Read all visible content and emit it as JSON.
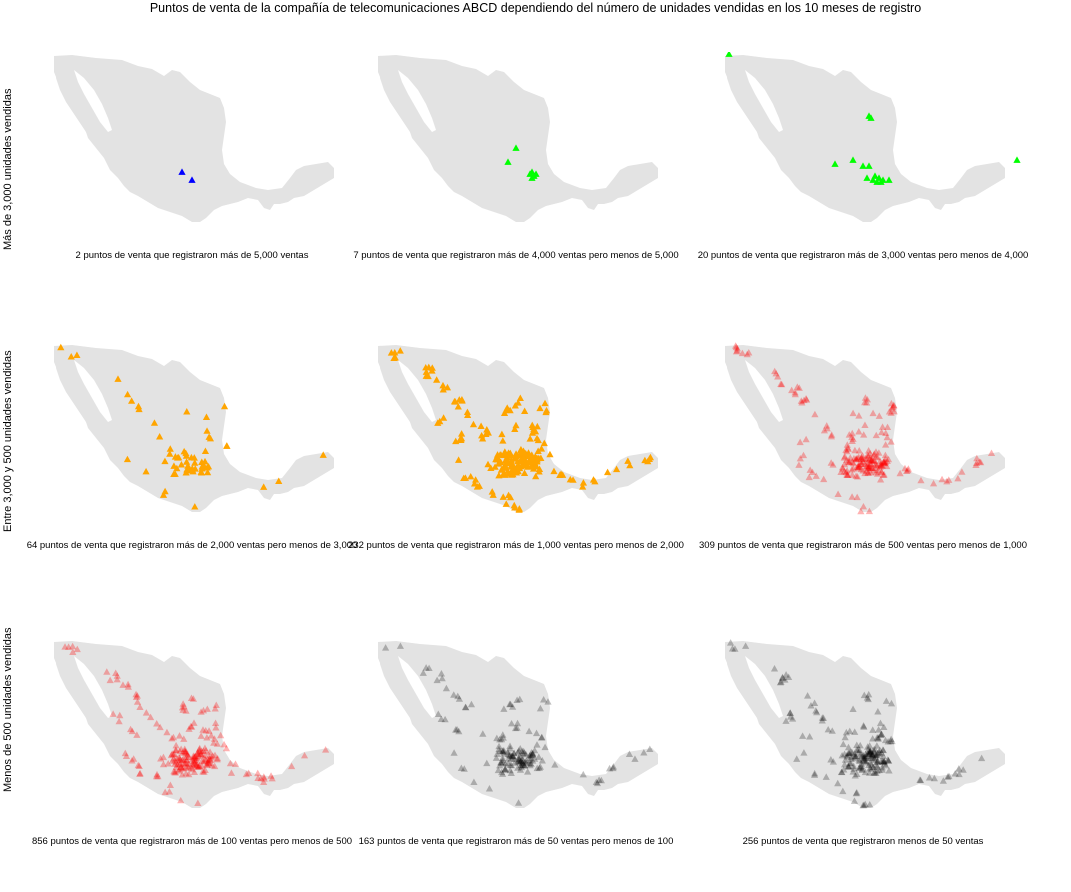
{
  "title": "Puntos de venta de la compañía de telecomunicaciones ABCD dependiendo del número de unidades vendidas en los 10 meses de registro",
  "row_labels": [
    "Más de 3,000 unidades vendidas",
    "Entre 3,000 y 500 unidades vendidas",
    "Menos de 500 unidades vendidas"
  ],
  "map_fill": "#e3e3e3",
  "panels": [
    {
      "caption": "2 puntos de venta que registraron más de 5,000 ventas",
      "color": "#0000ff",
      "density": "very-low"
    },
    {
      "caption": "7 puntos de venta que registraron más de 4,000 ventas pero menos de 5,000",
      "color": "#00ff00",
      "density": "very-low"
    },
    {
      "caption": "20 puntos de venta que registraron más de 3,000 ventas pero menos de 4,000",
      "color": "#00ff00",
      "density": "low"
    },
    {
      "caption": "64 puntos de venta que registraron más de 2,000 ventas pero menos de 3,000",
      "color": "#ffa500",
      "density": "medium"
    },
    {
      "caption": "232 puntos de venta que registraron más de 1,000 ventas pero menos de 2,000",
      "color": "#ffa500",
      "density": "high"
    },
    {
      "caption": "309 puntos de venta que registraron más de 500 ventas pero menos de 1,000",
      "color": "#ff0000",
      "density": "high-transparent"
    },
    {
      "caption": "856 puntos de venta que registraron más de 100 ventas pero menos de 500",
      "color": "#ff0000",
      "density": "very-high-transparent"
    },
    {
      "caption": "163 puntos de venta que registraron más de 50 ventas pero menos de 100",
      "color": "#000000",
      "density": "medium-transparent"
    },
    {
      "caption": "256 puntos de venta que registraron menos de 50 ventas",
      "color": "#000000",
      "density": "medium-transparent"
    }
  ]
}
